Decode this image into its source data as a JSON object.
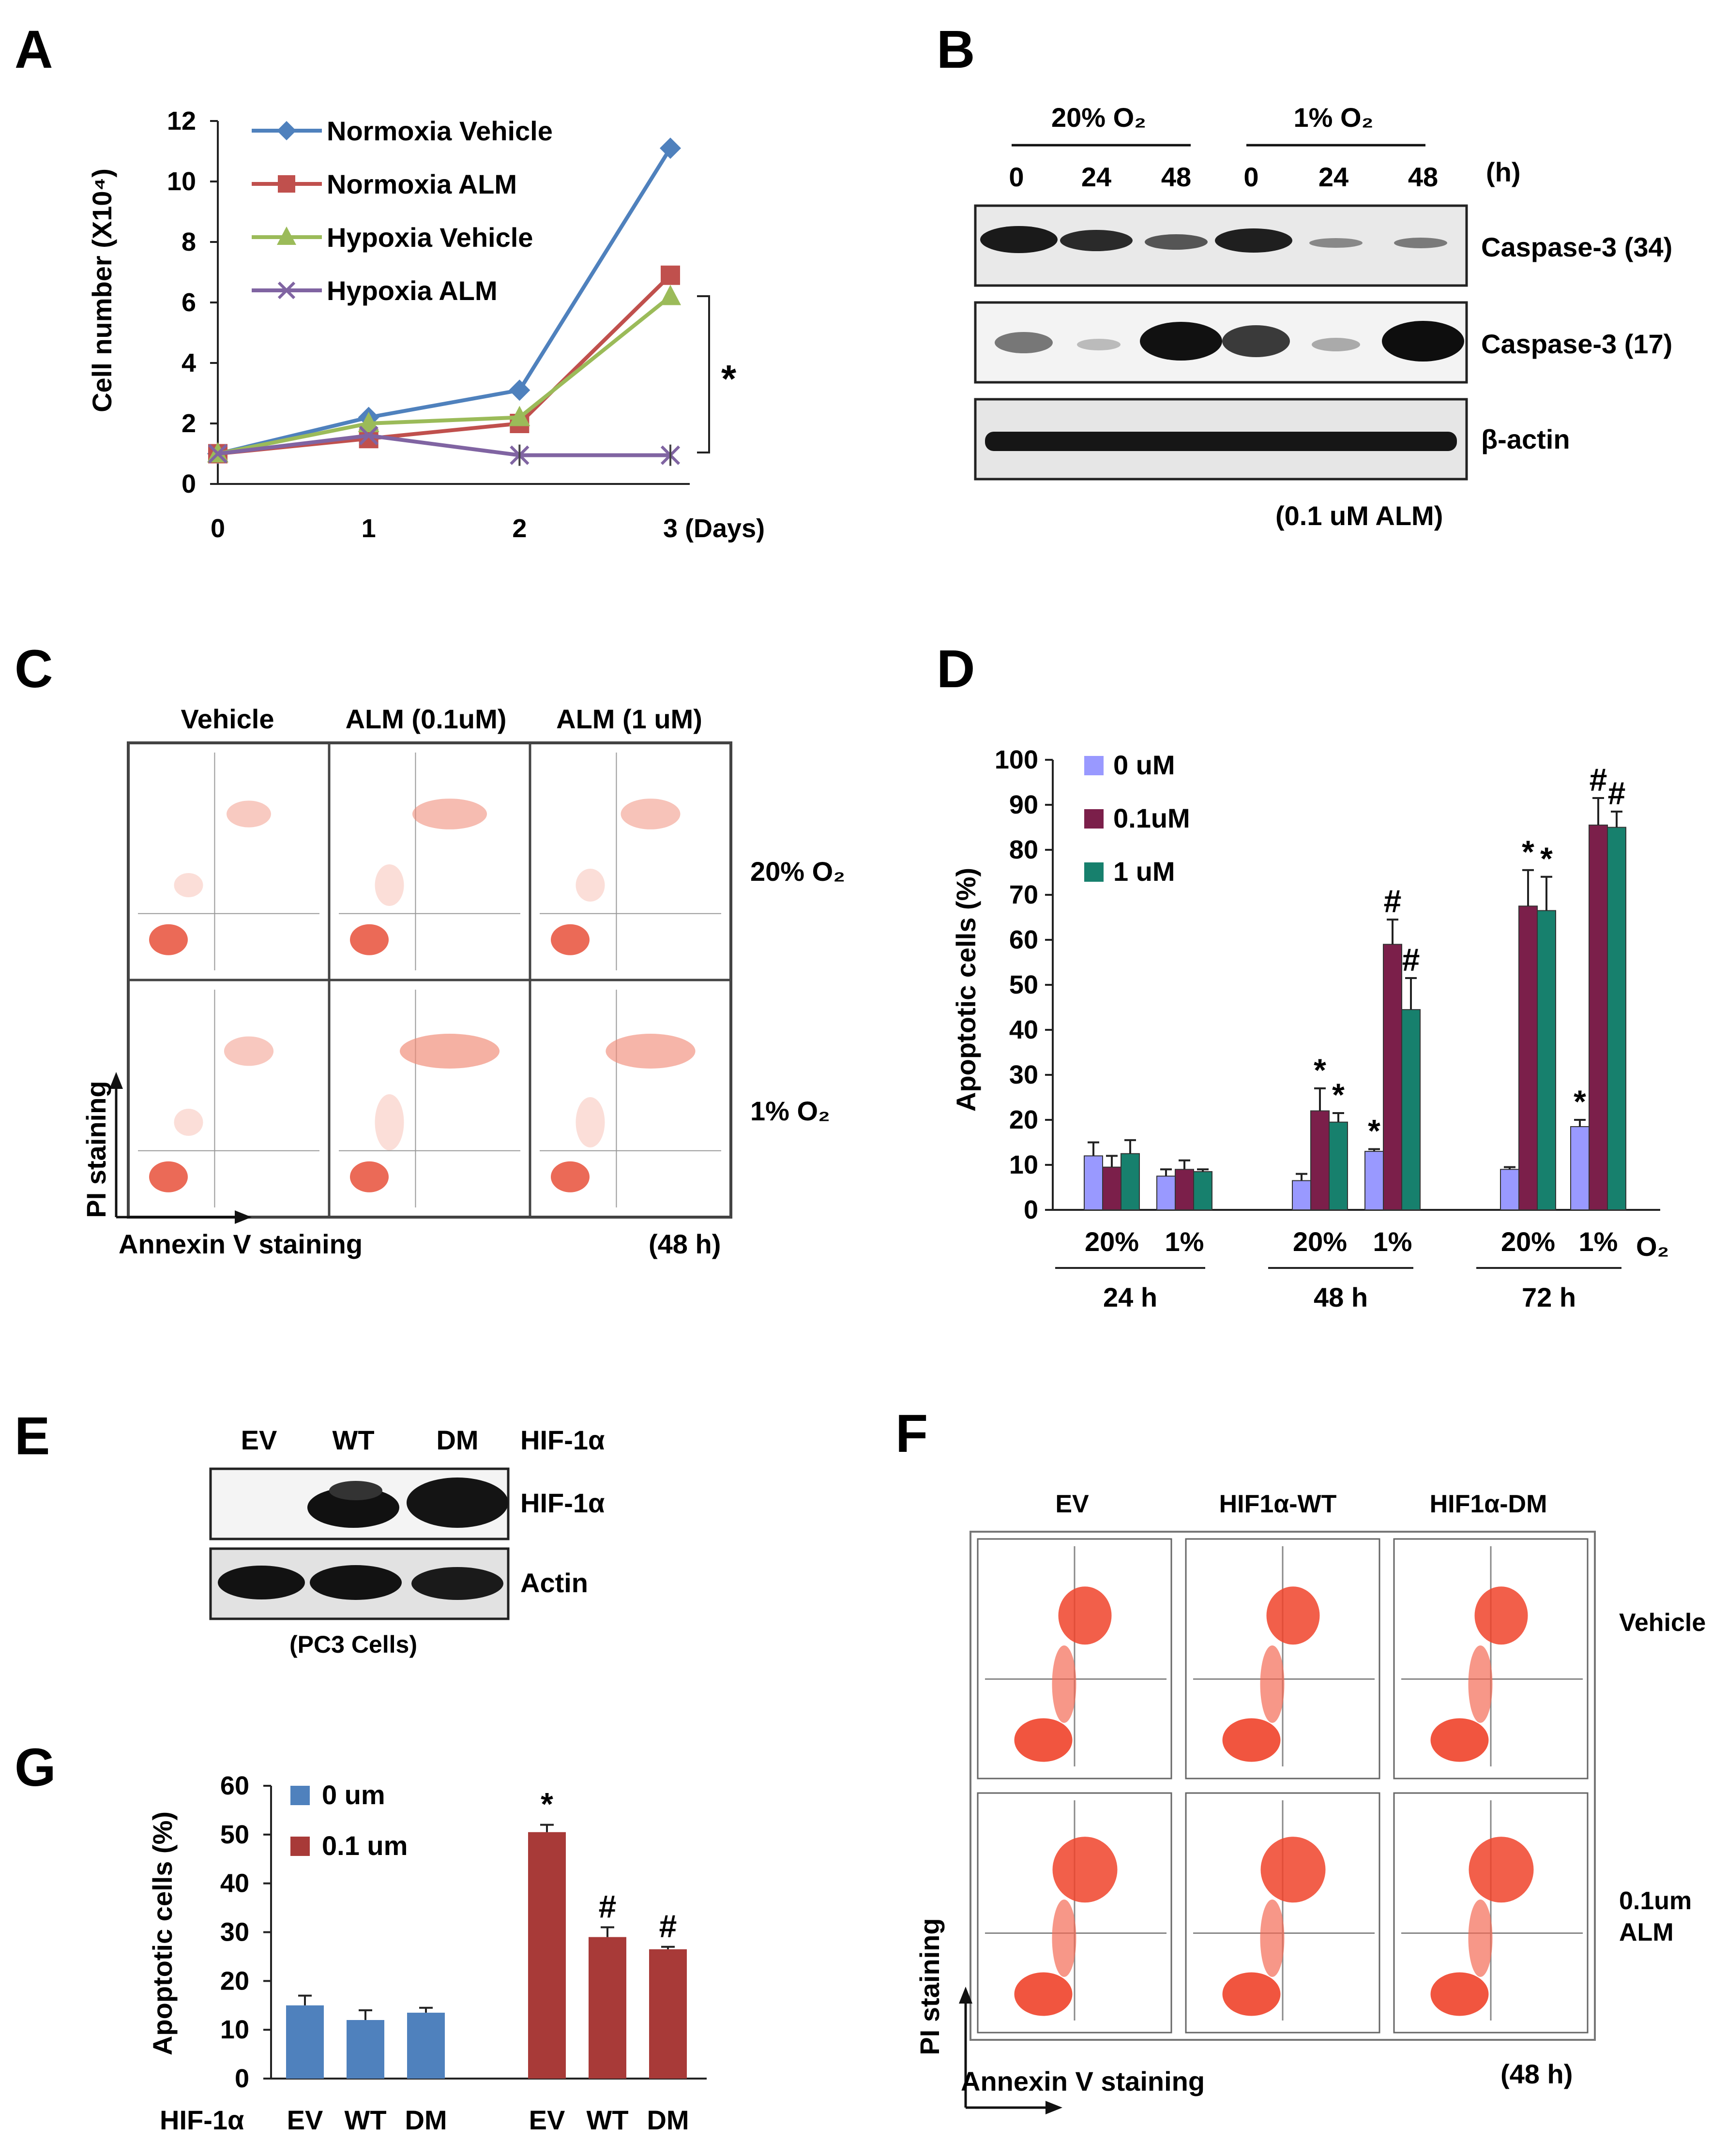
{
  "panels": {
    "A": {
      "letter": "A",
      "chart_data": {
        "type": "line",
        "x": [
          0,
          1,
          2,
          3
        ],
        "x_tick_labels": [
          "0",
          "1",
          "2",
          "3 (Days)"
        ],
        "ylabel": "Cell number (X10⁴)",
        "ylim": [
          0,
          12
        ],
        "y_ticks": [
          "0",
          "2",
          "4",
          "6",
          "8",
          "10",
          "12"
        ],
        "series": [
          {
            "name": "Normoxia Vehicle",
            "color": "#4f81bd",
            "marker": "diamond",
            "values": [
              1,
              2.2,
              3.1,
              11.1
            ]
          },
          {
            "name": "Normoxia ALM",
            "color": "#c0504d",
            "marker": "square",
            "values": [
              1,
              1.5,
              2.0,
              6.9
            ]
          },
          {
            "name": "Hypoxia Vehicle",
            "color": "#9bbb59",
            "marker": "triangle",
            "values": [
              1,
              2.0,
              2.2,
              6.2
            ]
          },
          {
            "name": "Hypoxia ALM",
            "color": "#8064a2",
            "marker": "x",
            "values": [
              1,
              1.6,
              0.95,
              0.95
            ]
          }
        ],
        "significance": "*"
      }
    },
    "B": {
      "letter": "B",
      "group_labels": [
        "20% O₂",
        "1% O₂"
      ],
      "time_labels": [
        "0",
        "24",
        "48",
        "0",
        "24",
        "48"
      ],
      "unit": "(h)",
      "band_labels": [
        "Caspase-3 (34)",
        "Caspase-3 (17)",
        "β-actin"
      ],
      "treatment": "(0.1 uM ALM)"
    },
    "C": {
      "letter": "C",
      "col_labels": [
        "Vehicle",
        "ALM (0.1uM)",
        "ALM (1 uM)"
      ],
      "row_labels": [
        "20% O₂",
        "1% O₂"
      ],
      "y_axis": "PI staining",
      "x_axis": "Annexin V staining",
      "time": "(48 h)"
    },
    "D": {
      "letter": "D",
      "chart_data": {
        "type": "bar",
        "ylabel": "Apoptotic cells (%)",
        "ylim": [
          0,
          100
        ],
        "y_ticks": [
          "0",
          "10",
          "20",
          "30",
          "40",
          "50",
          "60",
          "70",
          "80",
          "90",
          "100"
        ],
        "categories": [
          "20%",
          "1%",
          "20%",
          "1%",
          "20%",
          "1%"
        ],
        "time_groups": [
          "24 h",
          "48 h",
          "72 h"
        ],
        "o2_label": "O₂",
        "series": [
          {
            "name": "0 uM",
            "color": "#9999ff",
            "values": [
              12,
              7.5,
              6.5,
              13,
              9,
              18.5
            ],
            "errors": [
              3,
              1.5,
              1.5,
              0.5,
              0.5,
              1.5
            ]
          },
          {
            "name": "0.1uM",
            "color": "#7b1f4a",
            "values": [
              9.5,
              9,
              22,
              59,
              67.5,
              85.5
            ],
            "errors": [
              2.5,
              2,
              5,
              5.5,
              8,
              6
            ]
          },
          {
            "name": "1 uM",
            "color": "#17806d",
            "values": [
              12.5,
              8.5,
              19.5,
              44.5,
              66.5,
              85
            ],
            "errors": [
              3,
              0.5,
              2,
              7,
              7.5,
              3.5
            ]
          }
        ],
        "annotations": [
          {
            "group": 2,
            "series": 1,
            "text": "*"
          },
          {
            "group": 2,
            "series": 2,
            "text": "*"
          },
          {
            "group": 3,
            "series": 0,
            "text": "*"
          },
          {
            "group": 3,
            "series": 1,
            "text": "#"
          },
          {
            "group": 3,
            "series": 2,
            "text": "#"
          },
          {
            "group": 4,
            "series": 1,
            "text": "*"
          },
          {
            "group": 4,
            "series": 2,
            "text": "*"
          },
          {
            "group": 5,
            "series": 0,
            "text": "*"
          },
          {
            "group": 5,
            "series": 1,
            "text": "#"
          },
          {
            "group": 5,
            "series": 2,
            "text": "#"
          }
        ]
      }
    },
    "E": {
      "letter": "E",
      "lane_labels": [
        "EV",
        "WT",
        "DM"
      ],
      "header": "HIF-1α",
      "band_labels": [
        "HIF-1α",
        "Actin"
      ],
      "caption": "(PC3 Cells)"
    },
    "F": {
      "letter": "F",
      "col_labels": [
        "EV",
        "HIF1α-WT",
        "HIF1α-DM"
      ],
      "row_labels": [
        "Vehicle",
        "0.1um",
        "ALM"
      ],
      "y_axis": "PI staining",
      "x_axis": "Annexin V staining",
      "time": "(48 h)"
    },
    "G": {
      "letter": "G",
      "chart_data": {
        "type": "bar",
        "ylabel": "Apoptotic cells (%)",
        "ylim": [
          0,
          60
        ],
        "y_ticks": [
          "0",
          "10",
          "20",
          "30",
          "40",
          "50",
          "60"
        ],
        "row_label": "HIF-1α",
        "series": [
          {
            "name": "0 um",
            "color": "#4f81bd",
            "categories": [
              "EV",
              "WT",
              "DM"
            ],
            "values": [
              15,
              12,
              13.5
            ],
            "errors": [
              2,
              2,
              1
            ]
          },
          {
            "name": "0.1 um",
            "color": "#a83a38",
            "categories": [
              "EV",
              "WT",
              "DM"
            ],
            "values": [
              50.5,
              29,
              26.5
            ],
            "errors": [
              1.5,
              2,
              0.5
            ]
          }
        ],
        "annotations": [
          {
            "series": 1,
            "index": 0,
            "text": "*"
          },
          {
            "series": 1,
            "index": 1,
            "text": "#"
          },
          {
            "series": 1,
            "index": 2,
            "text": "#"
          }
        ]
      }
    }
  }
}
